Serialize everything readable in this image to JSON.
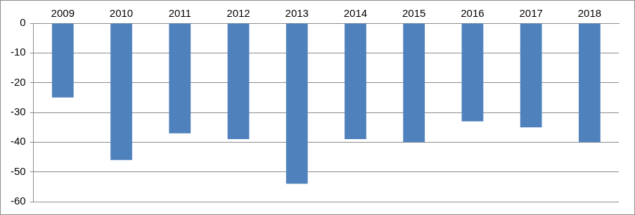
{
  "chart_data": {
    "type": "bar",
    "categories": [
      "2009",
      "2010",
      "2011",
      "2012",
      "2013",
      "2014",
      "2015",
      "2016",
      "2017",
      "2018"
    ],
    "values": [
      -25,
      -46,
      -37,
      -39,
      -54,
      -39,
      -40,
      -33,
      -35,
      -40
    ],
    "color": "#4f81bd",
    "ylim": [
      -60,
      0
    ],
    "yticks": [
      -60,
      -50,
      -40,
      -30,
      -20,
      -10,
      0
    ],
    "grid": true
  }
}
